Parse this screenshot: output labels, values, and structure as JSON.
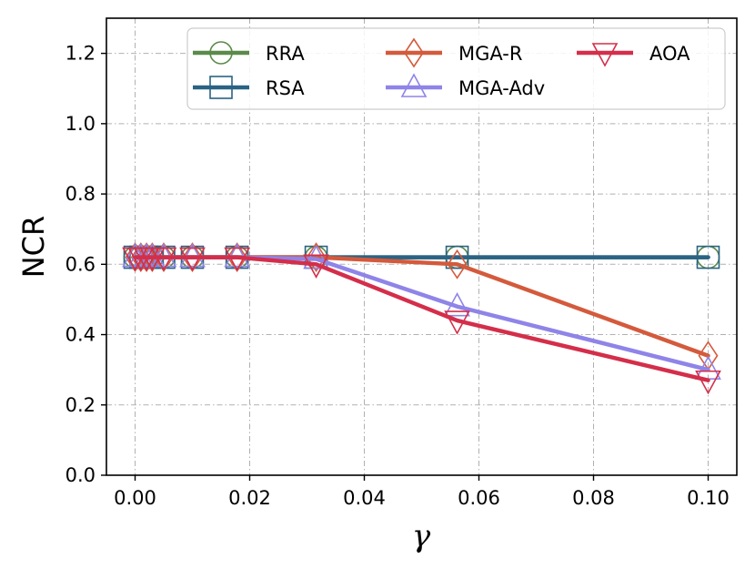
{
  "chart_data": {
    "type": "line",
    "title": "",
    "xlabel": "γ",
    "ylabel": "NCR",
    "xlim": [
      -0.005,
      0.105
    ],
    "ylim": [
      0.0,
      1.3
    ],
    "xticks": [
      0.0,
      0.02,
      0.04,
      0.06,
      0.08,
      0.1
    ],
    "xtick_labels": [
      "0.00",
      "0.02",
      "0.04",
      "0.06",
      "0.08",
      "0.10"
    ],
    "yticks": [
      0.0,
      0.2,
      0.4,
      0.6,
      0.8,
      1.0,
      1.2
    ],
    "ytick_labels": [
      "0.0",
      "0.2",
      "0.4",
      "0.6",
      "0.8",
      "1.0",
      "1.2"
    ],
    "grid": true,
    "legend_position": "top",
    "x": [
      0.0,
      0.001,
      0.002,
      0.003,
      0.005,
      0.01,
      0.0178,
      0.0316,
      0.0562,
      0.1
    ],
    "series": [
      {
        "name": "RRA",
        "color": "#5b8a4a",
        "marker": "circle",
        "values": [
          0.62,
          0.62,
          0.62,
          0.62,
          0.62,
          0.62,
          0.62,
          0.62,
          0.62,
          0.62
        ]
      },
      {
        "name": "RSA",
        "color": "#2a6384",
        "marker": "square",
        "values": [
          0.62,
          0.62,
          0.62,
          0.62,
          0.62,
          0.62,
          0.62,
          0.62,
          0.62,
          0.62
        ]
      },
      {
        "name": "MGA-R",
        "color": "#d45a3c",
        "marker": "diamond",
        "values": [
          0.62,
          0.62,
          0.62,
          0.62,
          0.62,
          0.62,
          0.62,
          0.62,
          0.6,
          0.34
        ]
      },
      {
        "name": "MGA-Adv",
        "color": "#8f84e8",
        "marker": "triangle-up",
        "values": [
          0.62,
          0.62,
          0.62,
          0.62,
          0.62,
          0.62,
          0.62,
          0.615,
          0.48,
          0.3
        ]
      },
      {
        "name": "AOA",
        "color": "#d42e4a",
        "marker": "triangle-down",
        "values": [
          0.62,
          0.62,
          0.62,
          0.62,
          0.62,
          0.62,
          0.62,
          0.6,
          0.44,
          0.27
        ]
      }
    ]
  }
}
